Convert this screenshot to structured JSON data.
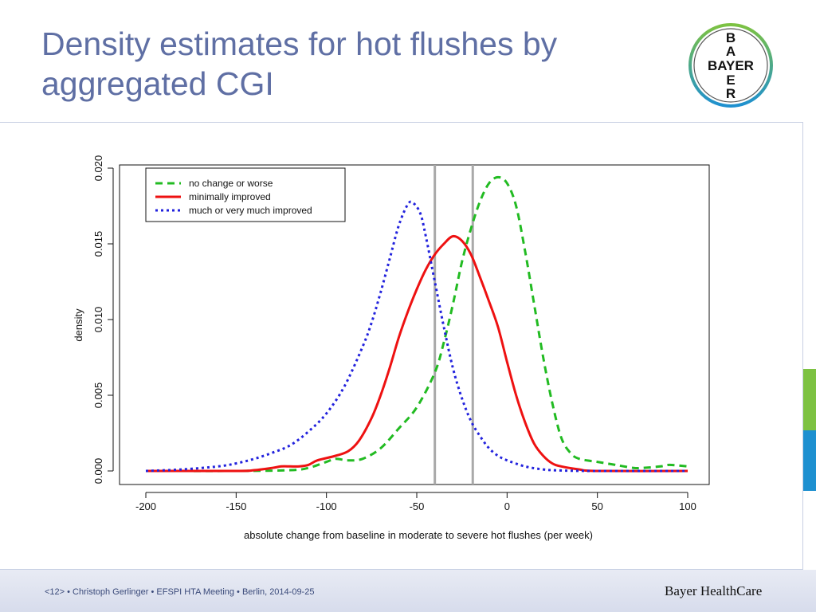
{
  "slide": {
    "title": "Density estimates for hot flushes by aggregated CGI",
    "footer": "<12> • Christoph Gerlinger • EFSPI HTA Meeting • Berlin, 2014-09-25",
    "brand": "Bayer HealthCare"
  },
  "logo": {
    "text_vertical": [
      "B",
      "A",
      "Y",
      "E",
      "R"
    ],
    "text_horizontal": "BAYER",
    "colors": {
      "outer_top": "#7dc242",
      "outer_bottom": "#1e90d0"
    }
  },
  "chart_data": {
    "type": "line",
    "xlabel": "absolute change from baseline in moderate to severe hot flushes (per week)",
    "ylabel": "density",
    "xlim": [
      -200,
      100
    ],
    "ylim": [
      0,
      0.02
    ],
    "x_ticks": [
      "-200",
      "-150",
      "-100",
      "-50",
      "0",
      "50",
      "100"
    ],
    "y_ticks": [
      "0.000",
      "0.005",
      "0.010",
      "0.015",
      "0.020"
    ],
    "vertical_lines": [
      -40,
      -19
    ],
    "legend_position": "top-left",
    "series": [
      {
        "name": "no change or worse",
        "color": "#22bb22",
        "dash": "dashed",
        "points": [
          [
            -200,
            0
          ],
          [
            -150,
            0
          ],
          [
            -120,
            5e-05
          ],
          [
            -110,
            0.0002
          ],
          [
            -100,
            0.0006
          ],
          [
            -95,
            0.0008
          ],
          [
            -88,
            0.0007
          ],
          [
            -80,
            0.0008
          ],
          [
            -70,
            0.0015
          ],
          [
            -60,
            0.0028
          ],
          [
            -50,
            0.0042
          ],
          [
            -40,
            0.0065
          ],
          [
            -35,
            0.0085
          ],
          [
            -30,
            0.011
          ],
          [
            -25,
            0.0138
          ],
          [
            -20,
            0.016
          ],
          [
            -15,
            0.0178
          ],
          [
            -10,
            0.019
          ],
          [
            -5,
            0.0194
          ],
          [
            0,
            0.019
          ],
          [
            5,
            0.0175
          ],
          [
            10,
            0.0145
          ],
          [
            15,
            0.011
          ],
          [
            20,
            0.0075
          ],
          [
            25,
            0.0045
          ],
          [
            30,
            0.0022
          ],
          [
            35,
            0.0012
          ],
          [
            40,
            0.0008
          ],
          [
            50,
            0.0006
          ],
          [
            60,
            0.0004
          ],
          [
            70,
            0.0002
          ],
          [
            75,
            0.0002
          ],
          [
            85,
            0.0003
          ],
          [
            90,
            0.0004
          ],
          [
            100,
            0.0003
          ]
        ]
      },
      {
        "name": "minimally improved",
        "color": "#ee1111",
        "dash": "solid",
        "points": [
          [
            -200,
            0
          ],
          [
            -150,
            0
          ],
          [
            -140,
            5e-05
          ],
          [
            -130,
            0.0002
          ],
          [
            -125,
            0.0003
          ],
          [
            -120,
            0.0003
          ],
          [
            -115,
            0.0003
          ],
          [
            -110,
            0.0004
          ],
          [
            -105,
            0.0007
          ],
          [
            -95,
            0.001
          ],
          [
            -88,
            0.0013
          ],
          [
            -82,
            0.002
          ],
          [
            -75,
            0.0035
          ],
          [
            -70,
            0.005
          ],
          [
            -65,
            0.0068
          ],
          [
            -60,
            0.0088
          ],
          [
            -55,
            0.0105
          ],
          [
            -50,
            0.012
          ],
          [
            -45,
            0.0133
          ],
          [
            -40,
            0.0143
          ],
          [
            -35,
            0.015
          ],
          [
            -30,
            0.0155
          ],
          [
            -25,
            0.0152
          ],
          [
            -20,
            0.0143
          ],
          [
            -15,
            0.0128
          ],
          [
            -10,
            0.0112
          ],
          [
            -5,
            0.0095
          ],
          [
            0,
            0.0072
          ],
          [
            5,
            0.005
          ],
          [
            10,
            0.0032
          ],
          [
            15,
            0.0018
          ],
          [
            20,
            0.001
          ],
          [
            25,
            0.0005
          ],
          [
            30,
            0.0003
          ],
          [
            40,
            0.0001
          ],
          [
            50,
            0
          ],
          [
            100,
            0
          ]
        ]
      },
      {
        "name": "much or very much improved",
        "color": "#2222dd",
        "dash": "dotted",
        "points": [
          [
            -200,
            0
          ],
          [
            -180,
            0.0001
          ],
          [
            -160,
            0.0003
          ],
          [
            -150,
            0.0005
          ],
          [
            -140,
            0.0008
          ],
          [
            -130,
            0.0012
          ],
          [
            -120,
            0.0017
          ],
          [
            -110,
            0.0026
          ],
          [
            -100,
            0.0038
          ],
          [
            -90,
            0.0056
          ],
          [
            -80,
            0.0082
          ],
          [
            -75,
            0.0098
          ],
          [
            -70,
            0.0118
          ],
          [
            -65,
            0.014
          ],
          [
            -60,
            0.0162
          ],
          [
            -55,
            0.0176
          ],
          [
            -52,
            0.0177
          ],
          [
            -48,
            0.017
          ],
          [
            -45,
            0.0155
          ],
          [
            -40,
            0.0125
          ],
          [
            -35,
            0.0095
          ],
          [
            -30,
            0.0068
          ],
          [
            -25,
            0.0048
          ],
          [
            -20,
            0.0033
          ],
          [
            -15,
            0.0023
          ],
          [
            -10,
            0.0015
          ],
          [
            -5,
            0.001
          ],
          [
            0,
            0.0007
          ],
          [
            10,
            0.0003
          ],
          [
            20,
            0.0001
          ],
          [
            30,
            3e-05
          ],
          [
            50,
            0
          ],
          [
            100,
            0
          ]
        ]
      }
    ]
  }
}
